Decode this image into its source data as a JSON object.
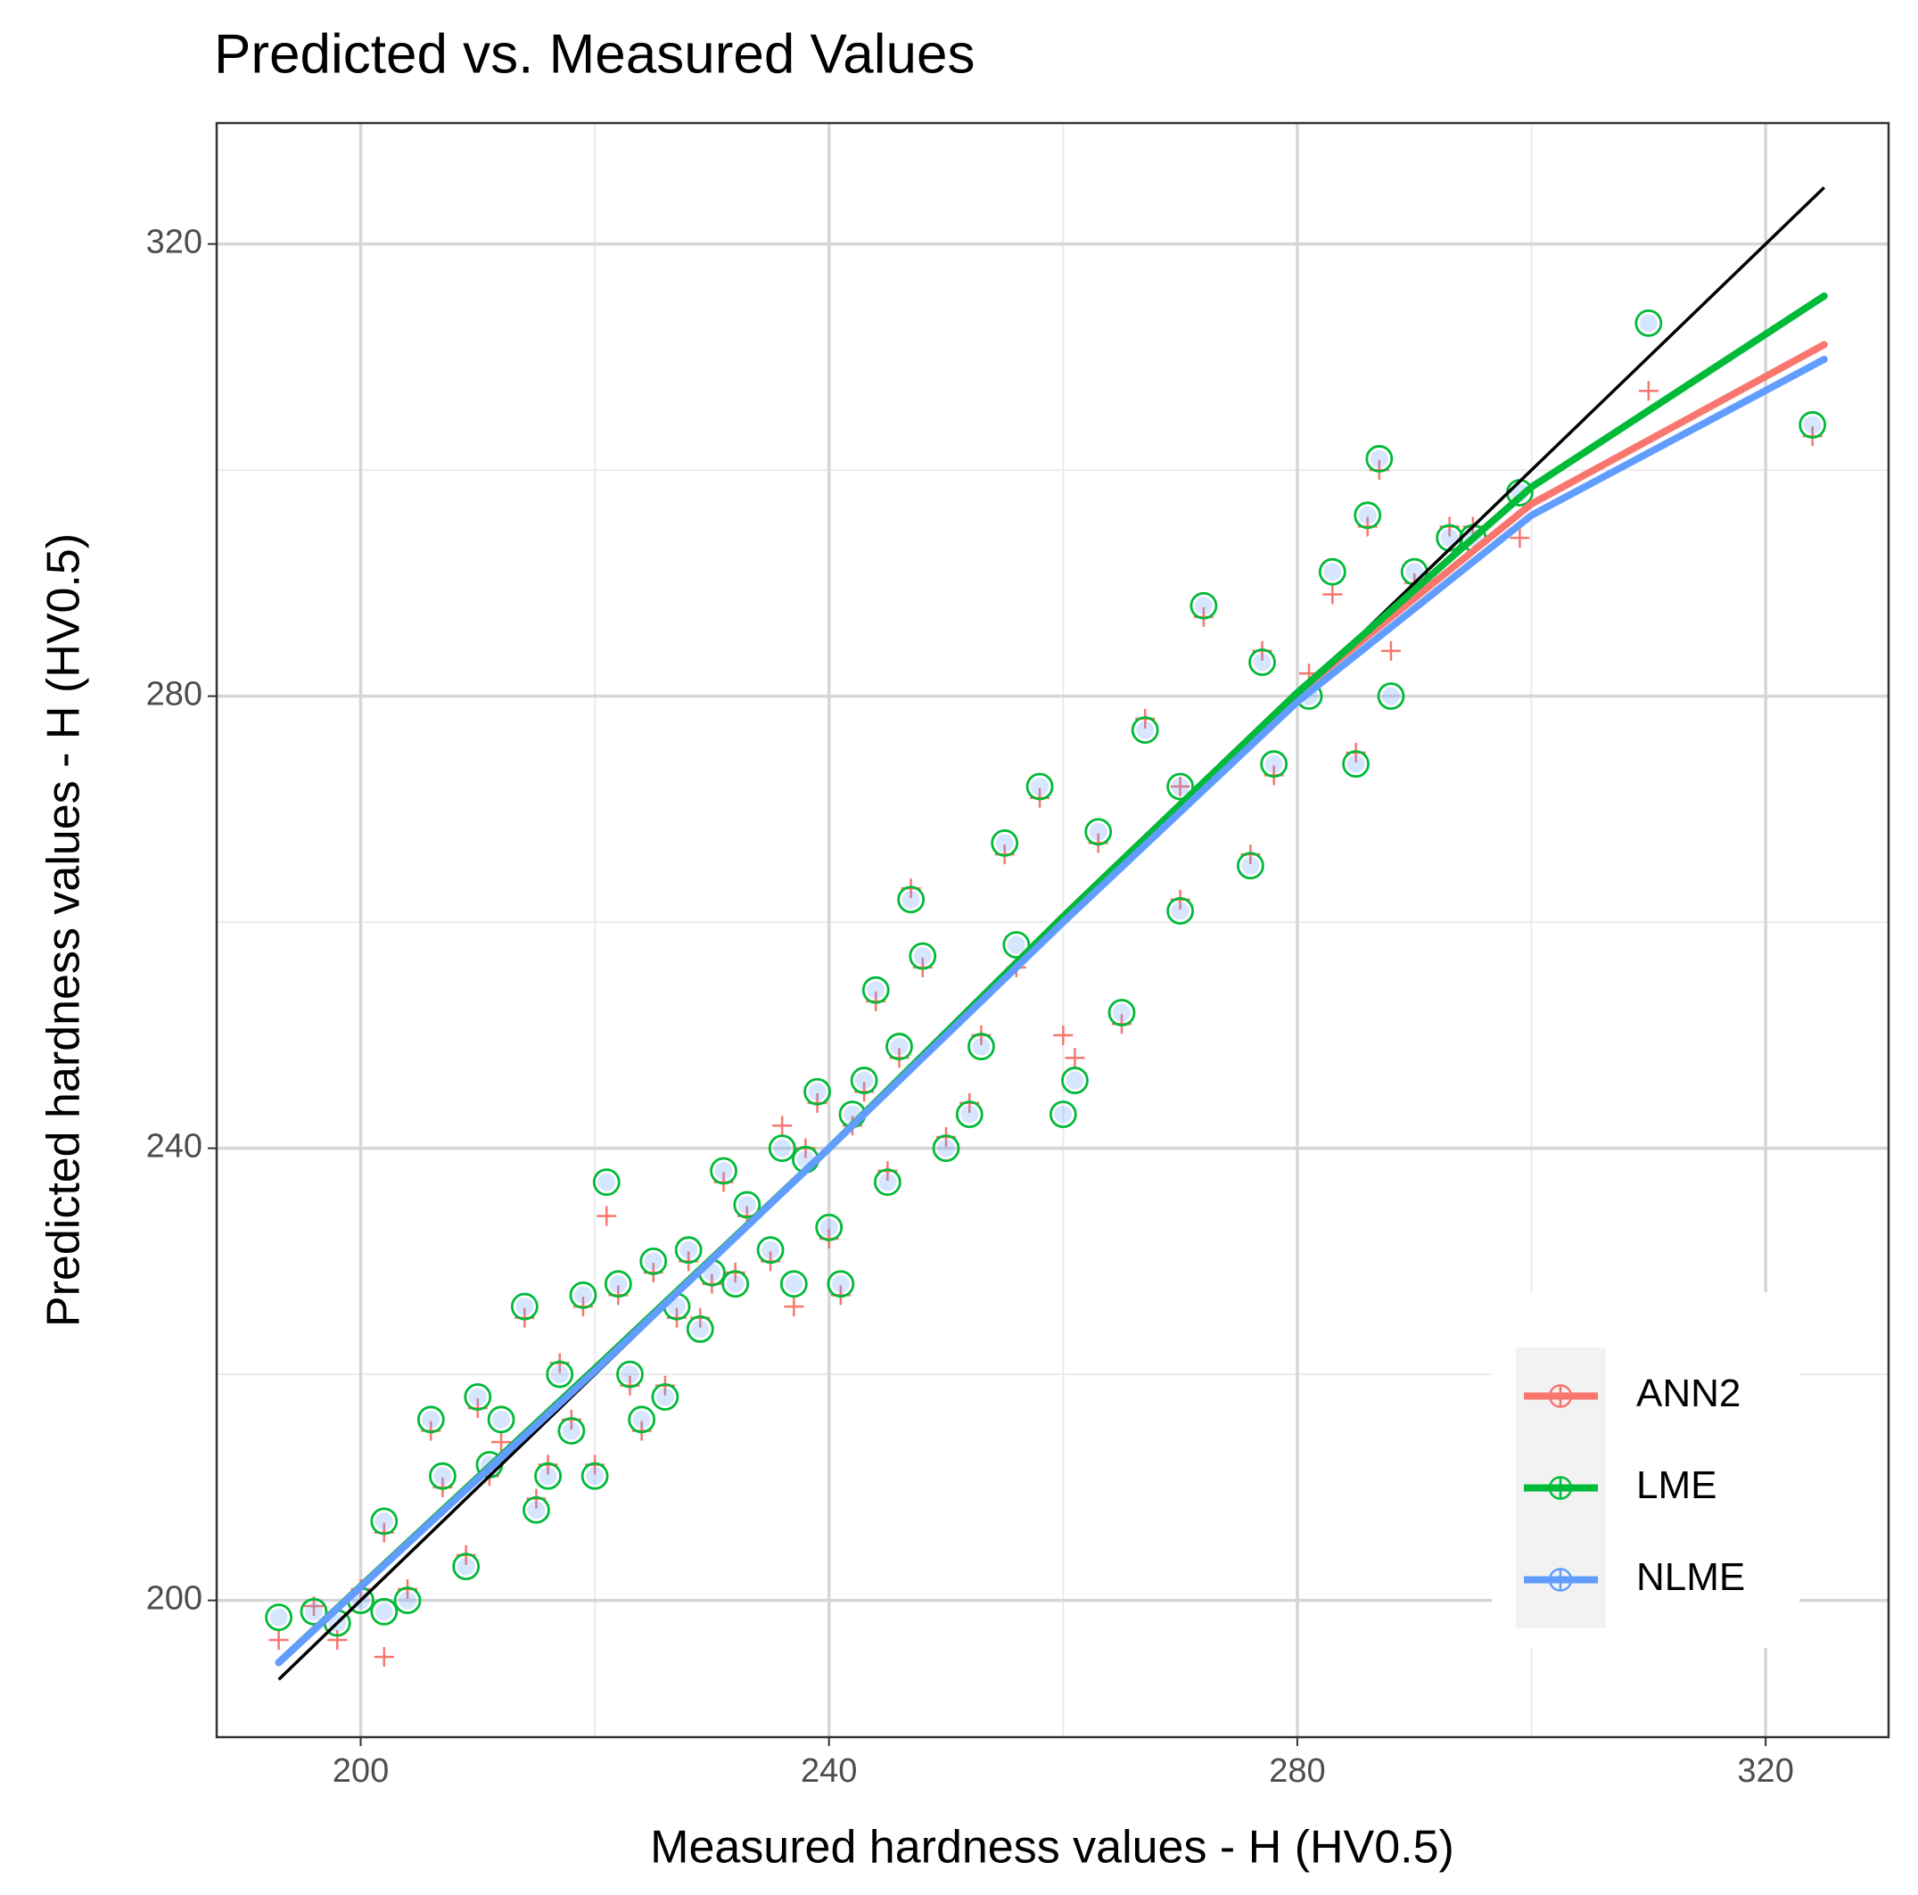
{
  "chart_data": {
    "type": "scatter",
    "title": "Predicted vs. Measured Values",
    "x_label": "Measured hardness values - H (HV0.5)",
    "y_label": "Predicted hardness values - H (HV0.5)",
    "xlim": [
      187.7,
      330.5
    ],
    "ylim": [
      187.9,
      330.7
    ],
    "xticks": [
      200,
      240,
      280,
      320
    ],
    "yticks": [
      200,
      240,
      280,
      320
    ],
    "minor_xticks": [
      220,
      260,
      300
    ],
    "minor_yticks": [
      220,
      260,
      300
    ],
    "grid": true,
    "legend": "bottom-right",
    "x": [
      193,
      196,
      198,
      200,
      202,
      202,
      204,
      206,
      207,
      209,
      210,
      211,
      212,
      214,
      215,
      216,
      217,
      218,
      219,
      220,
      221,
      222,
      223,
      224,
      225,
      226,
      227,
      228,
      229,
      230,
      231,
      232,
      233,
      235,
      236,
      237,
      238,
      239,
      240,
      241,
      242,
      243,
      244,
      245,
      246,
      247,
      248,
      250,
      252,
      253,
      255,
      256,
      258,
      260,
      261,
      263,
      265,
      267,
      270,
      270,
      272,
      276,
      277,
      278,
      281,
      283,
      285,
      286,
      287,
      288,
      290,
      293,
      295,
      299,
      310,
      324
    ],
    "fit_x": [
      193,
      220,
      240,
      260,
      280,
      300,
      325
    ],
    "reference_line": {
      "x": [
        193,
        325
      ],
      "y": [
        193,
        325
      ],
      "color": "#000000"
    },
    "series": [
      {
        "name": "ANN2",
        "color": "#F8766D",
        "marker": "plus",
        "values": [
          196.5,
          199.5,
          196.5,
          201,
          206,
          195,
          201,
          215,
          210,
          204,
          217,
          211,
          214,
          225,
          209,
          212,
          221,
          216,
          226,
          212,
          234,
          227,
          219,
          215,
          229,
          219,
          225,
          230,
          225,
          228,
          237,
          229,
          234,
          230,
          242,
          226,
          240,
          244,
          232,
          227,
          242,
          245,
          253,
          238,
          248,
          263,
          256,
          241,
          244,
          250,
          266,
          256,
          271,
          250,
          248,
          267,
          251,
          278,
          262,
          272,
          287,
          266,
          284,
          273,
          282,
          289,
          275,
          295,
          300,
          284,
          290,
          295,
          295,
          294,
          307,
          303
        ],
        "fit": [
          194.5,
          220.5,
          240,
          260.5,
          280.3,
          297,
          311.1
        ]
      },
      {
        "name": "LME",
        "color": "#00BA38",
        "marker": "circle",
        "values": [
          198.5,
          199,
          198,
          200,
          207,
          199,
          200,
          216,
          211,
          203,
          218,
          212,
          216,
          226,
          208,
          211,
          220,
          215,
          227,
          211,
          237,
          228,
          220,
          216,
          230,
          218,
          226,
          231,
          224,
          229,
          238,
          228,
          235,
          231,
          240,
          228,
          239,
          245,
          233,
          228,
          243,
          246,
          254,
          237,
          249,
          262,
          257,
          240,
          243,
          249,
          267,
          258,
          272,
          243,
          246,
          268,
          252,
          277,
          261,
          272,
          288,
          265,
          283,
          274,
          280,
          291,
          274,
          296,
          301,
          280,
          291,
          294,
          294,
          298,
          313,
          304
        ],
        "fit": [
          194.5,
          220.5,
          240,
          260.5,
          280.3,
          298.5,
          315.4
        ]
      },
      {
        "name": "NLME",
        "color": "#619CFF",
        "marker": "dot",
        "values": [
          198.5,
          199,
          198,
          200,
          207,
          199,
          200,
          216,
          211,
          203,
          218,
          212,
          216,
          226,
          208,
          211,
          220,
          215,
          227,
          211,
          237,
          228,
          220,
          216,
          230,
          218,
          226,
          231,
          224,
          229,
          238,
          228,
          235,
          231,
          240,
          228,
          239,
          245,
          233,
          228,
          243,
          246,
          254,
          237,
          249,
          262,
          257,
          240,
          243,
          249,
          267,
          258,
          272,
          243,
          246,
          268,
          252,
          277,
          261,
          272,
          288,
          265,
          283,
          274,
          280,
          291,
          274,
          296,
          301,
          280,
          291,
          294,
          294,
          298,
          313,
          304
        ],
        "fit": [
          194.5,
          220.3,
          240,
          260,
          279.5,
          296,
          309.8
        ]
      }
    ]
  }
}
